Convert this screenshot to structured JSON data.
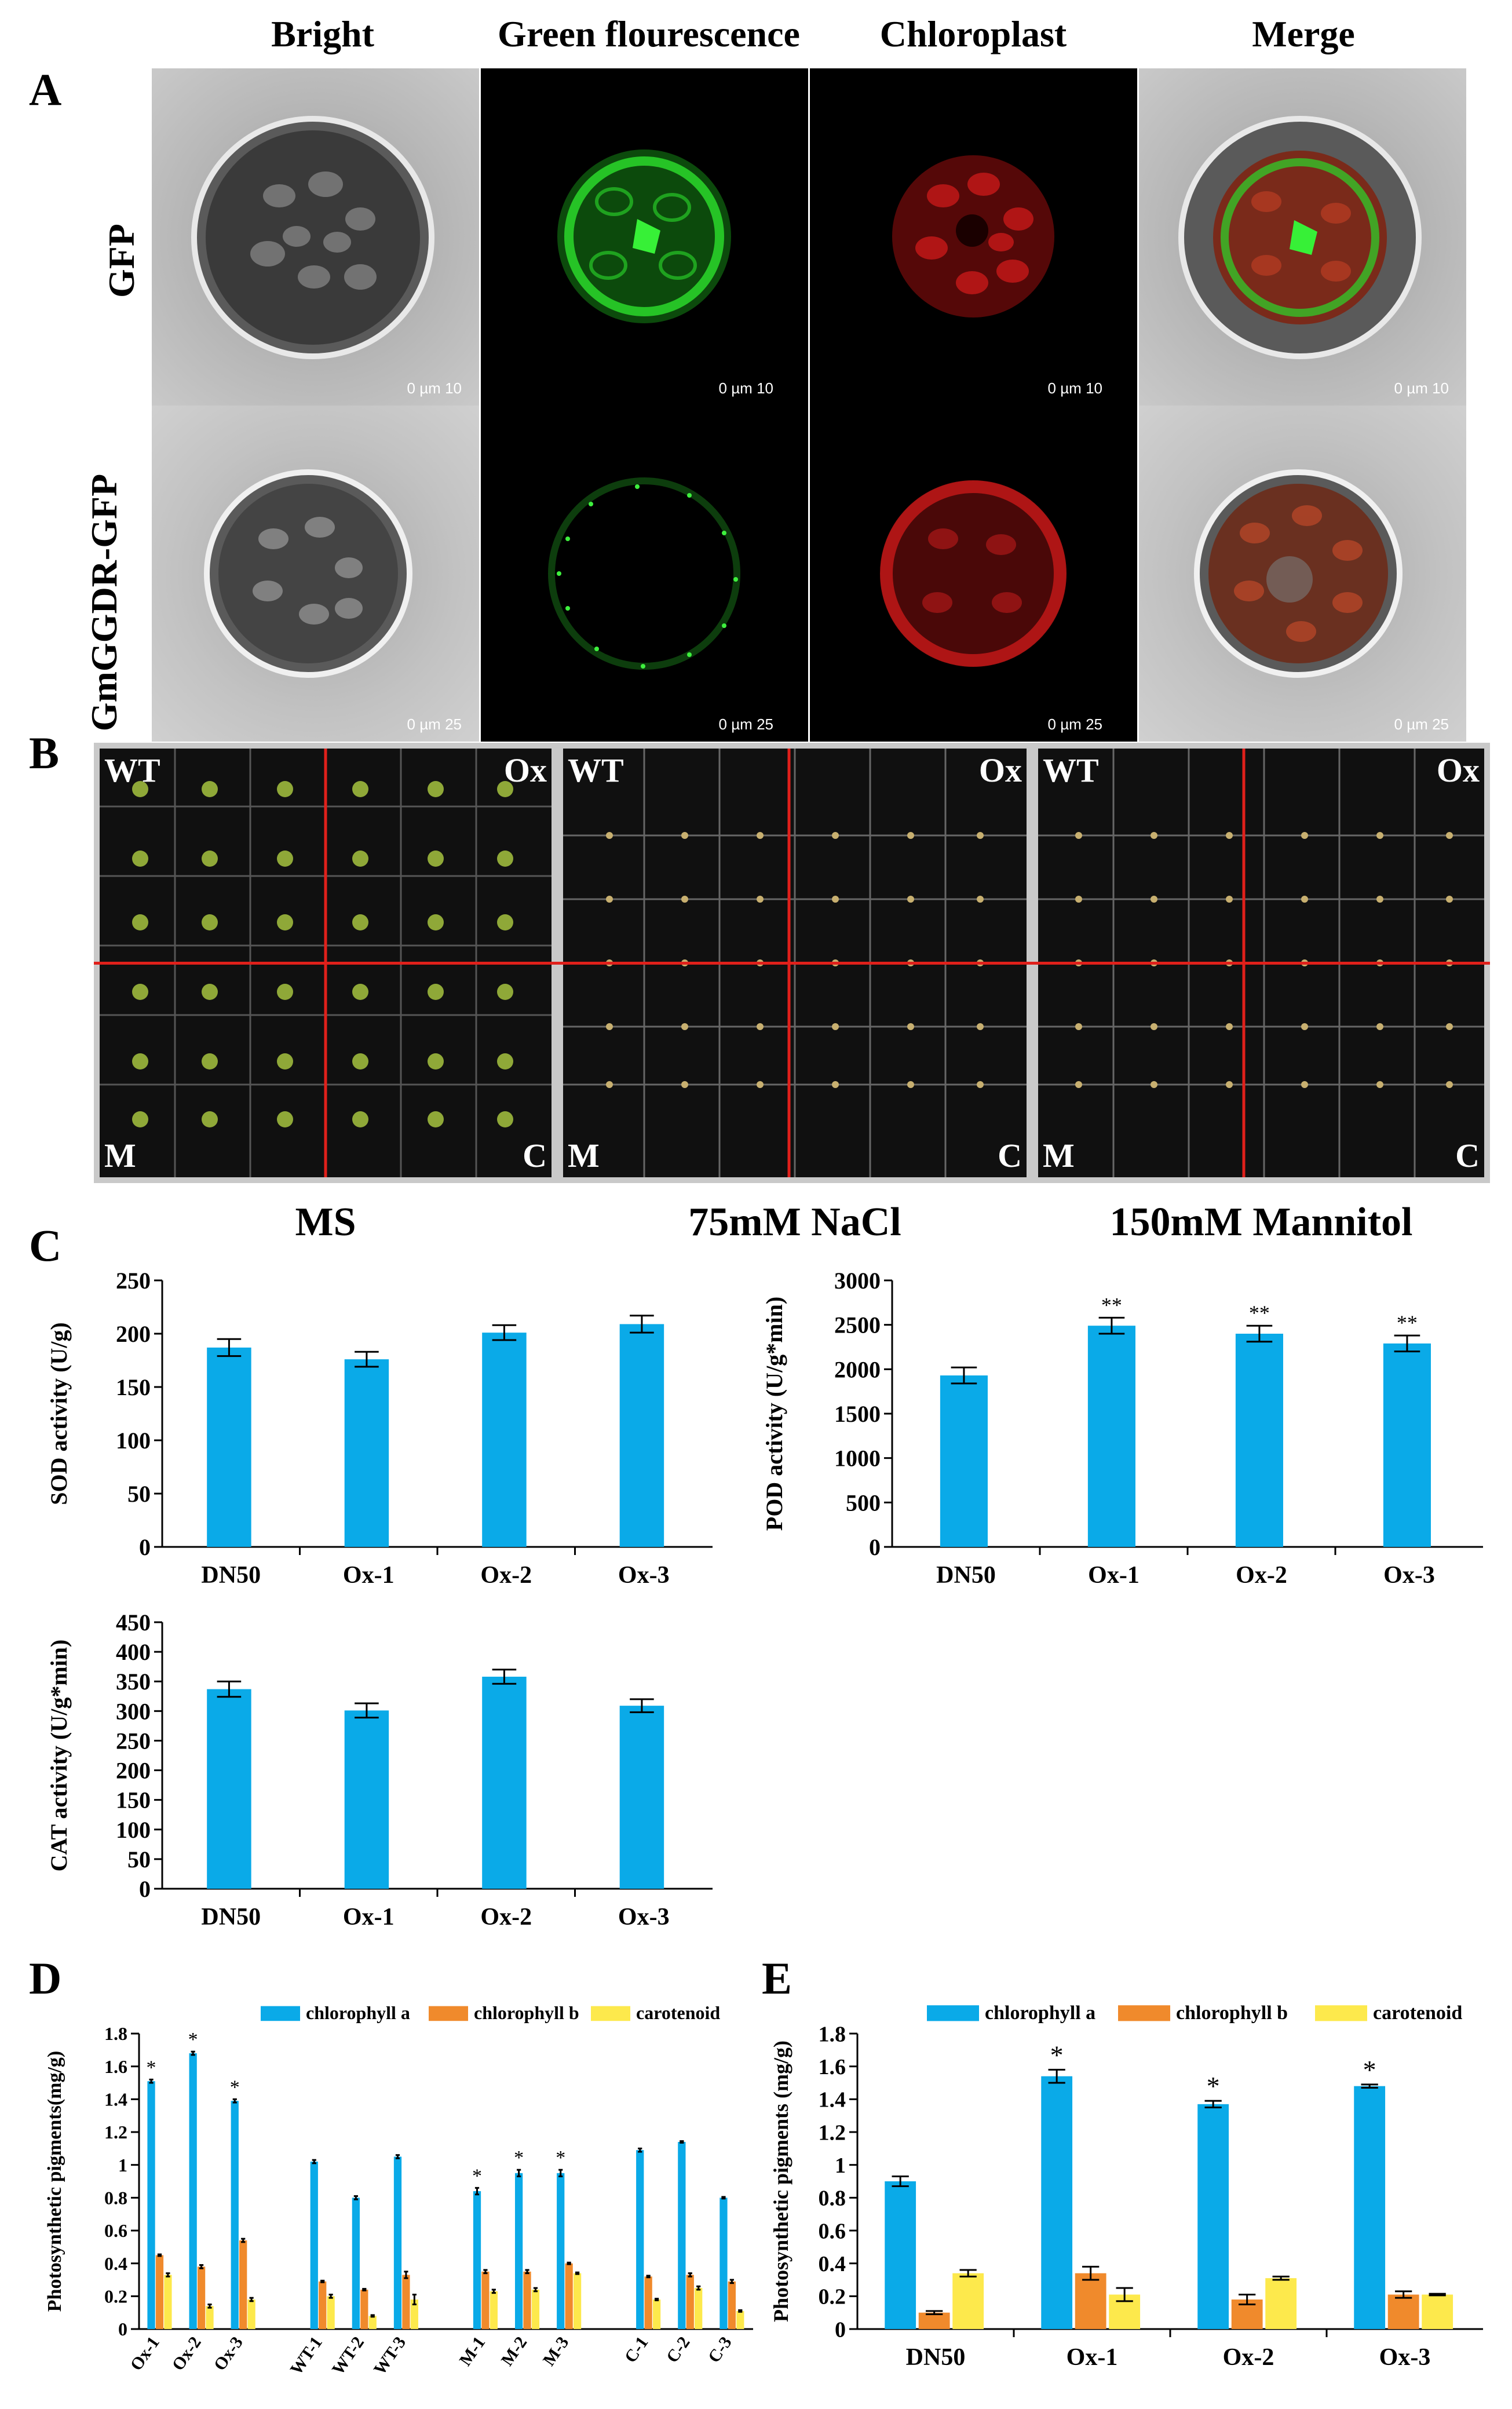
{
  "figure": {
    "panel_letters": {
      "A": "A",
      "B": "B",
      "C": "C",
      "D": "D",
      "E": "E"
    },
    "panel_a": {
      "columns": [
        "Bright",
        "Green flourescence",
        "Chloroplast",
        "Merge"
      ],
      "rows": [
        "GFP",
        "GmGGDR-GFP"
      ],
      "scale_labels_row1": [
        "0",
        "µm",
        "10"
      ],
      "scale_labels_row2": [
        "0",
        "µm",
        "25"
      ]
    },
    "panel_b": {
      "corners": {
        "tl": "WT",
        "tr": "Ox",
        "bl": "M",
        "br": "C"
      },
      "conditions": [
        "MS",
        "75mM NaCl",
        "150mM Mannitol"
      ]
    }
  },
  "colors": {
    "blue": "#0aaae8",
    "orange": "#f08a2c",
    "yellow": "#fde94c",
    "grid_red": "#e0201b"
  },
  "chart_data": [
    {
      "id": "sod",
      "type": "bar",
      "ylabel": "SOD activity (U/g)",
      "categories": [
        "DN50",
        "Ox-1",
        "Ox-2",
        "Ox-3"
      ],
      "values": [
        187,
        176,
        201,
        209
      ],
      "errors": [
        8,
        7,
        7,
        8
      ],
      "sig": [
        "",
        "",
        "",
        ""
      ],
      "ylim": [
        0,
        250
      ],
      "yticks": [
        0,
        50,
        100,
        150,
        200,
        250
      ]
    },
    {
      "id": "pod",
      "type": "bar",
      "ylabel": "POD activity (U/g*min)",
      "categories": [
        "DN50",
        "Ox-1",
        "Ox-2",
        "Ox-3"
      ],
      "values": [
        1930,
        2490,
        2400,
        2290
      ],
      "errors": [
        90,
        90,
        90,
        90
      ],
      "sig": [
        "",
        "**",
        "**",
        "**"
      ],
      "ylim": [
        0,
        3000
      ],
      "yticks": [
        0,
        500,
        1000,
        1500,
        2000,
        2500,
        3000
      ]
    },
    {
      "id": "cat",
      "type": "bar",
      "ylabel": "CAT activity (U/g*min)",
      "categories": [
        "DN50",
        "Ox-1",
        "Ox-2",
        "Ox-3"
      ],
      "values": [
        337,
        301,
        358,
        309
      ],
      "errors": [
        13,
        12,
        12,
        11
      ],
      "sig": [
        "",
        "",
        "",
        ""
      ],
      "ylim": [
        0,
        450
      ],
      "yticks": [
        0,
        50,
        100,
        150,
        200,
        250,
        300,
        350,
        400,
        450
      ]
    },
    {
      "id": "pigments_d",
      "type": "bar",
      "ylabel": "Photosynthetic pigments(mg/g)",
      "legend_position": "top",
      "categories": [
        "Ox-1",
        "Ox-2",
        "Ox-3",
        "WT-1",
        "WT-2",
        "WT-3",
        "M-1",
        "M-2",
        "M-3",
        "C-1",
        "C-2",
        "C-3"
      ],
      "series": [
        {
          "name": "chlorophyll a",
          "values": [
            1.51,
            1.68,
            1.39,
            1.02,
            0.8,
            1.05,
            0.84,
            0.95,
            0.95,
            1.09,
            1.14,
            0.8
          ],
          "errors": [
            0.01,
            0.01,
            0.01,
            0.01,
            0.01,
            0.01,
            0.02,
            0.02,
            0.02,
            0.01,
            0.005,
            0.005
          ],
          "sig": [
            "*",
            "*",
            "*",
            "",
            "",
            "",
            "*",
            "*",
            "*",
            "",
            "",
            ""
          ]
        },
        {
          "name": "chlorophyll b",
          "values": [
            0.45,
            0.38,
            0.54,
            0.29,
            0.24,
            0.33,
            0.35,
            0.35,
            0.4,
            0.32,
            0.33,
            0.29
          ],
          "errors": [
            0.005,
            0.01,
            0.01,
            0.005,
            0.005,
            0.02,
            0.01,
            0.01,
            0.005,
            0.005,
            0.01,
            0.01
          ],
          "sig": [
            "",
            "",
            "",
            "",
            "",
            "",
            "",
            "",
            "",
            "",
            "",
            ""
          ]
        },
        {
          "name": "carotenoid",
          "values": [
            0.33,
            0.14,
            0.18,
            0.2,
            0.08,
            0.18,
            0.23,
            0.24,
            0.34,
            0.18,
            0.25,
            0.11
          ],
          "errors": [
            0.01,
            0.01,
            0.01,
            0.01,
            0.005,
            0.03,
            0.01,
            0.01,
            0.005,
            0.005,
            0.01,
            0.005
          ],
          "sig": [
            "",
            "",
            "",
            "",
            "",
            "",
            "",
            "",
            "",
            "",
            "",
            ""
          ]
        }
      ],
      "ylim": [
        0,
        1.8
      ],
      "yticks": [
        0,
        0.2,
        0.4,
        0.6,
        0.8,
        1,
        1.2,
        1.4,
        1.6,
        1.8
      ],
      "group_size": 3
    },
    {
      "id": "pigments_e",
      "type": "bar",
      "ylabel": "Photosynthetic pigments (mg/g)",
      "legend_position": "top",
      "categories": [
        "DN50",
        "Ox-1",
        "Ox-2",
        "Ox-3"
      ],
      "series": [
        {
          "name": "chlorophyll a",
          "values": [
            0.9,
            1.54,
            1.37,
            1.48
          ],
          "errors": [
            0.03,
            0.04,
            0.02,
            0.01
          ],
          "sig": [
            "",
            "*",
            "*",
            "*"
          ]
        },
        {
          "name": "chlorophyll b",
          "values": [
            0.1,
            0.34,
            0.18,
            0.21
          ],
          "errors": [
            0.01,
            0.04,
            0.03,
            0.02
          ],
          "sig": [
            "",
            "",
            "",
            ""
          ]
        },
        {
          "name": "carotenoid",
          "values": [
            0.34,
            0.21,
            0.31,
            0.21
          ],
          "errors": [
            0.02,
            0.04,
            0.01,
            0.005
          ],
          "sig": [
            "",
            "",
            "",
            ""
          ]
        }
      ],
      "ylim": [
        0,
        1.8
      ],
      "yticks": [
        0,
        0.2,
        0.4,
        0.6,
        0.8,
        1,
        1.2,
        1.4,
        1.6,
        1.8
      ]
    }
  ]
}
